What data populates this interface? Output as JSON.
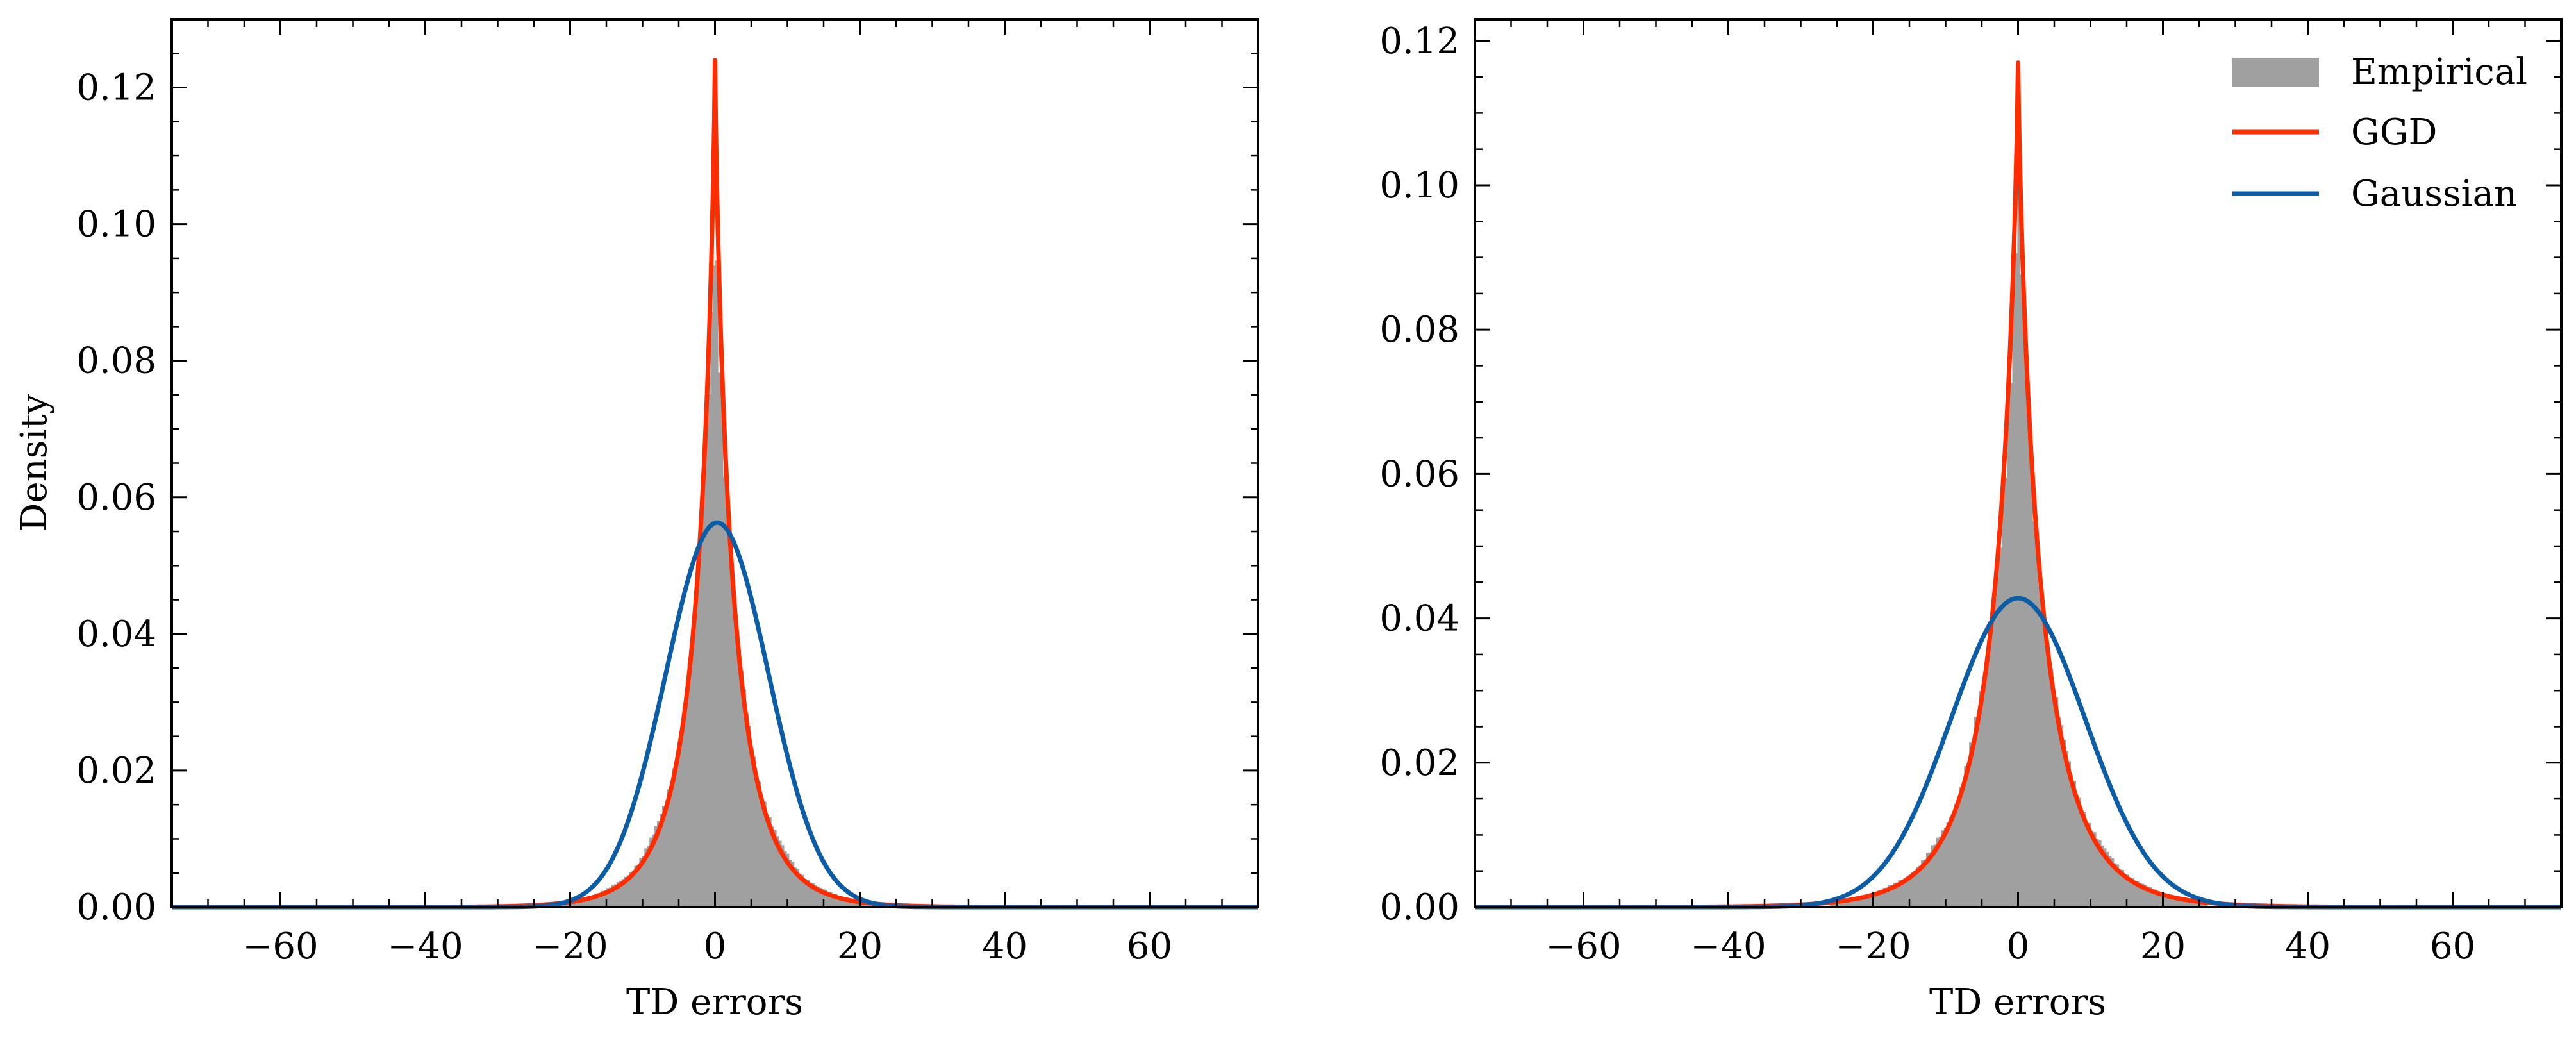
{
  "chart_data": [
    {
      "type": "histogram-with-fits",
      "title": "",
      "xlabel": "TD errors",
      "ylabel": "Density",
      "xlim": [
        -75,
        75
      ],
      "ylim": [
        0,
        0.13
      ],
      "xticks": [
        -60,
        -40,
        -20,
        0,
        20,
        40,
        60
      ],
      "yticks": [
        0.0,
        0.02,
        0.04,
        0.06,
        0.08,
        0.1,
        0.12
      ],
      "legend": "none",
      "series": [
        {
          "name": "Empirical",
          "kind": "histogram",
          "center": 0,
          "peak": 0.105,
          "halfwidth_scale": 3.2,
          "range": [
            -22,
            22
          ],
          "color": "#a0a0a0"
        },
        {
          "name": "GGD",
          "kind": "line",
          "center": 0,
          "peak": 0.124,
          "alpha": 2.6,
          "beta": 0.8,
          "color": "#ff2c00"
        },
        {
          "name": "Gaussian",
          "kind": "line",
          "center": 0.3,
          "peak": 0.0563,
          "sigma": 7.1,
          "color": "#0c5da5"
        }
      ]
    },
    {
      "type": "histogram-with-fits",
      "title": "",
      "xlabel": "TD errors",
      "ylabel": "",
      "xlim": [
        -75,
        75
      ],
      "ylim": [
        0,
        0.123
      ],
      "xticks": [
        -60,
        -40,
        -20,
        0,
        20,
        40,
        60
      ],
      "yticks": [
        0.0,
        0.02,
        0.04,
        0.06,
        0.08,
        0.1,
        0.12
      ],
      "legend": "top-right",
      "series": [
        {
          "name": "Empirical",
          "kind": "histogram",
          "center": 0,
          "peak": 0.1,
          "halfwidth_scale": 4.0,
          "range": [
            -26,
            26
          ],
          "color": "#a0a0a0"
        },
        {
          "name": "GGD",
          "kind": "line",
          "center": 0,
          "peak": 0.117,
          "alpha": 3.3,
          "beta": 0.8,
          "color": "#ff2c00"
        },
        {
          "name": "Gaussian",
          "kind": "line",
          "center": 0,
          "peak": 0.0428,
          "sigma": 9.3,
          "color": "#0c5da5"
        }
      ]
    }
  ]
}
